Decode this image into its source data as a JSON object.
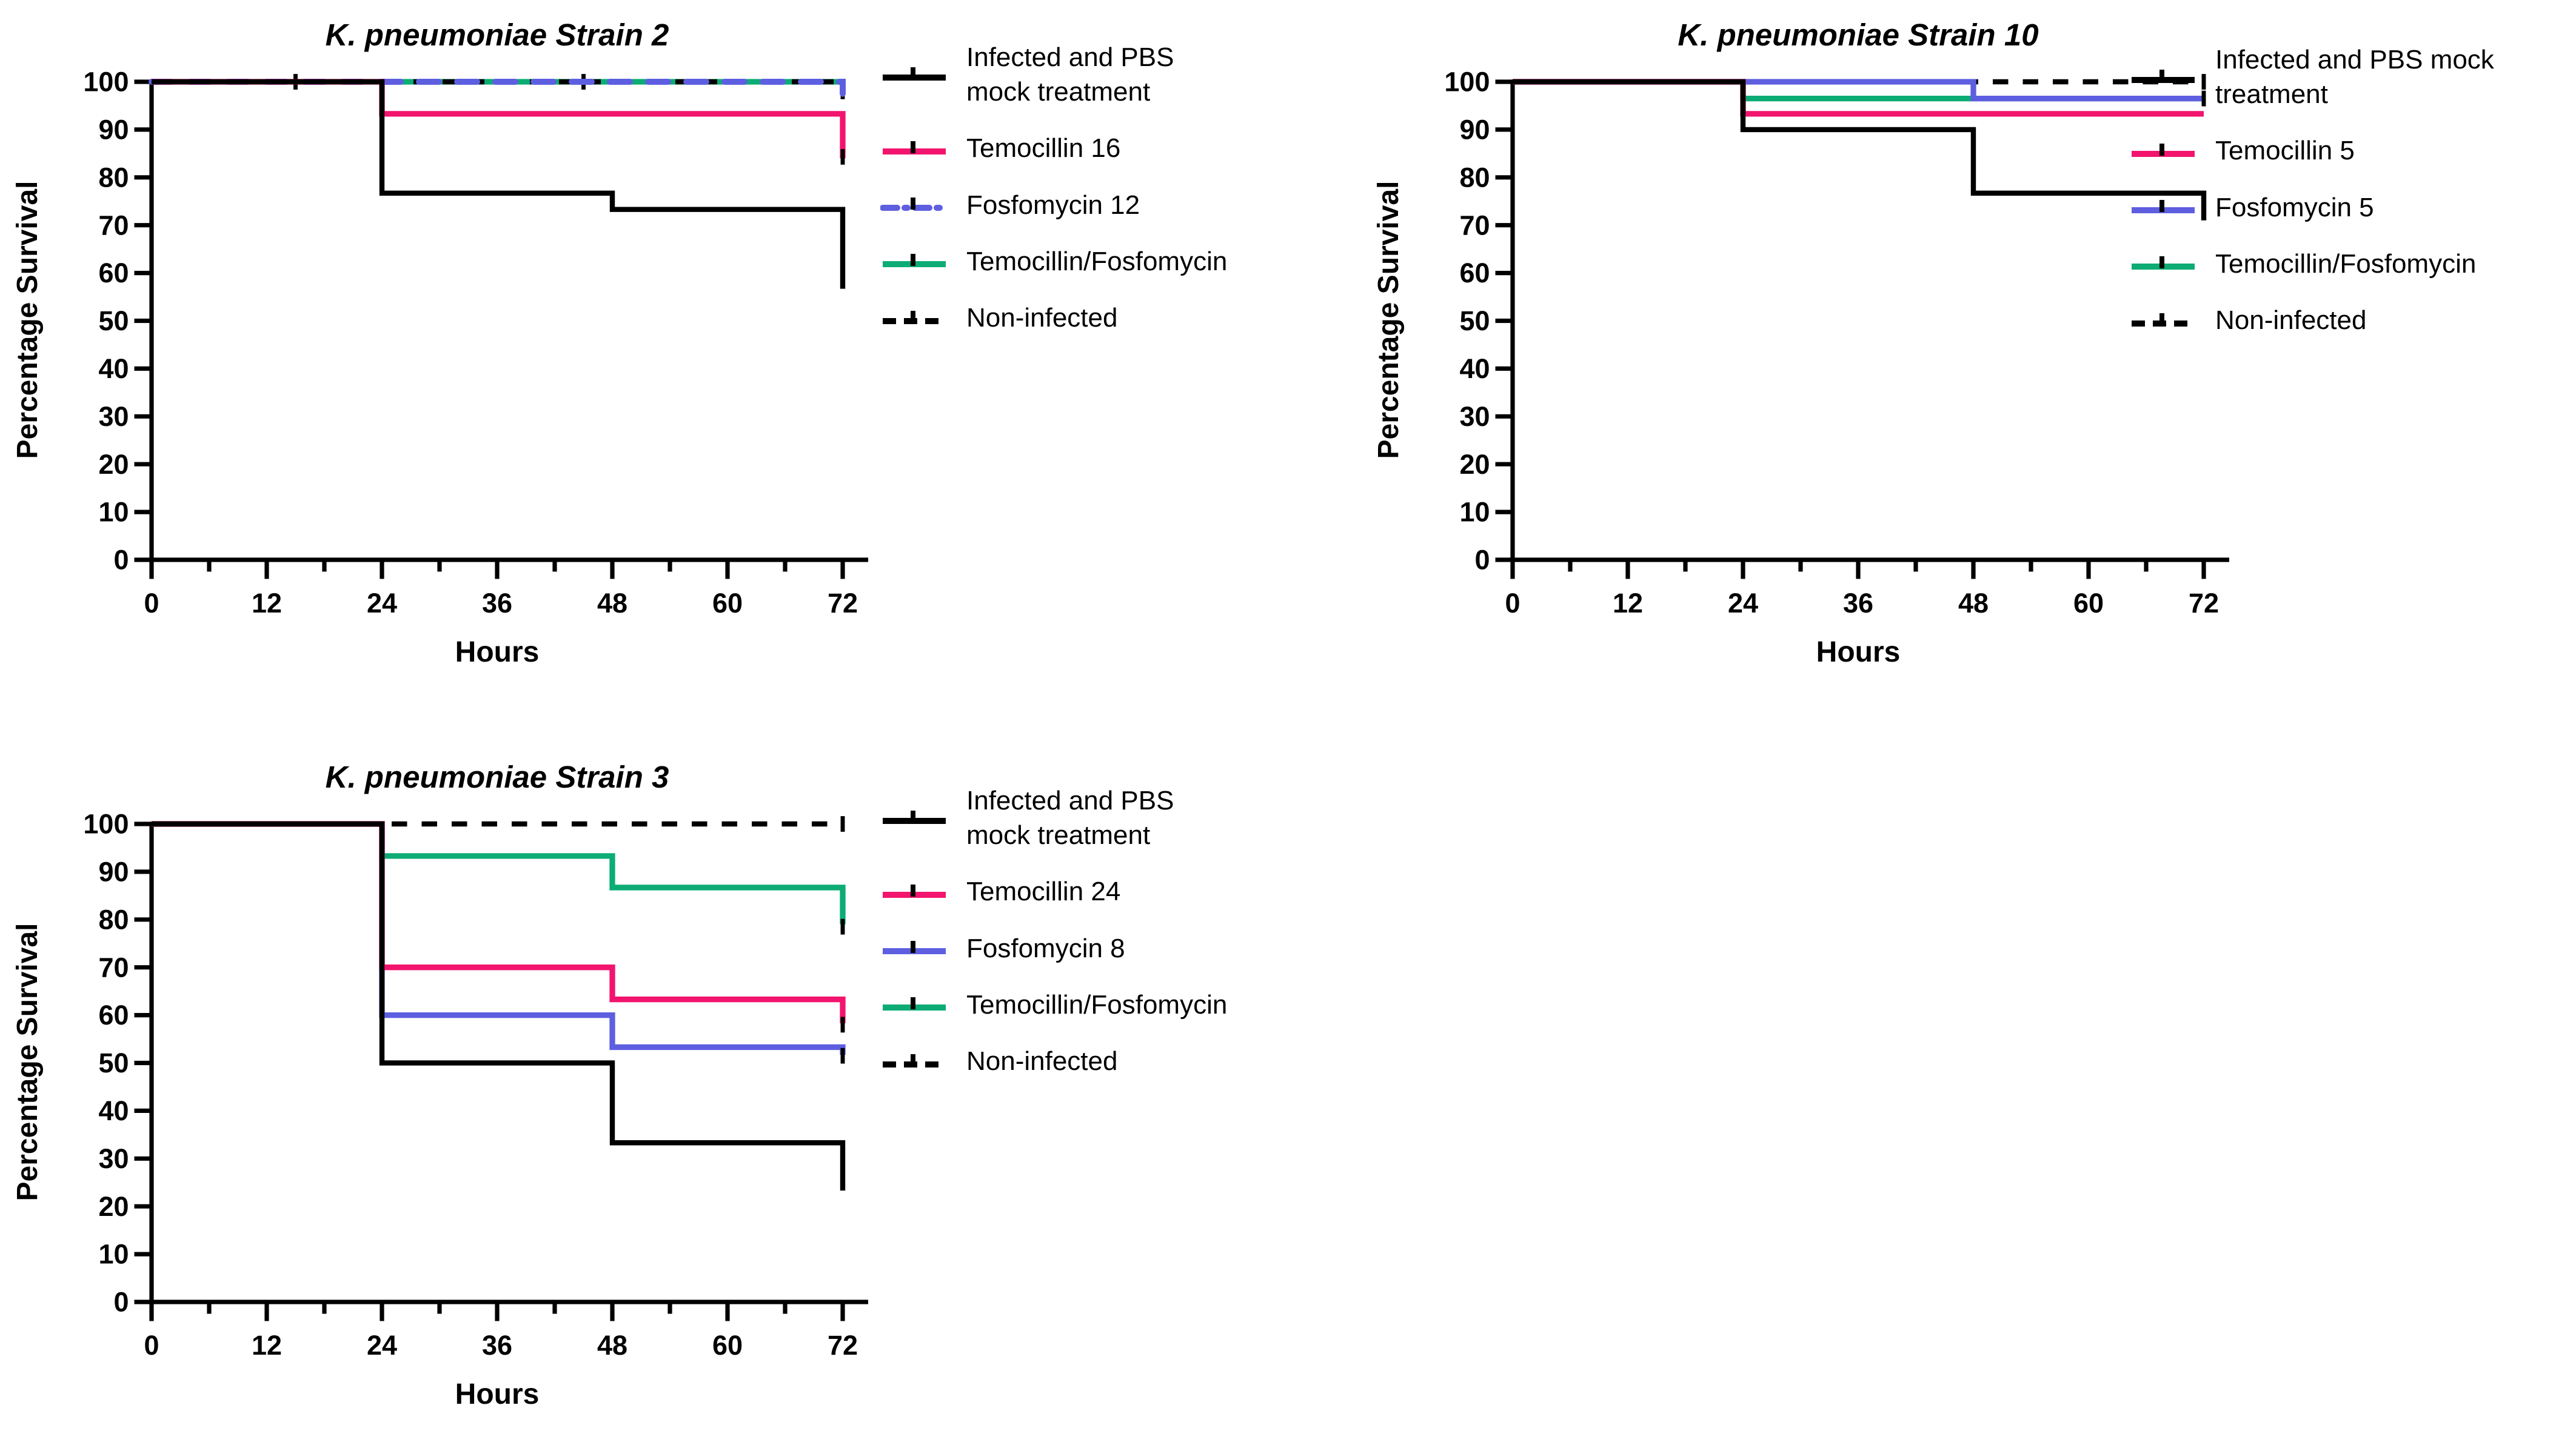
{
  "figure": {
    "background": "#ffffff",
    "description": "Kaplan-Meier survival curves for Galleria infected with three K. pneumoniae strains under different antibiotic treatments"
  },
  "colors": {
    "black": "#000000",
    "pink": "#F2146E",
    "blue": "#5E5FE0",
    "green": "#0CAC74"
  },
  "chart_data": [
    {
      "type": "line",
      "subtype": "kaplan-meier-step",
      "title": "K. pneumoniae Strain 2",
      "xlabel": "Hours",
      "ylabel": "Percentage Survival",
      "xlim": [
        0,
        72
      ],
      "ylim": [
        0,
        100
      ],
      "xticks": [
        0,
        12,
        24,
        36,
        48,
        60,
        72
      ],
      "minor_xtick_step": 6,
      "yticks": [
        0,
        10,
        20,
        30,
        40,
        50,
        60,
        70,
        80,
        90,
        100
      ],
      "grid": false,
      "legend_position": "right",
      "series": [
        {
          "name": "temocillin-fosfomycin",
          "color": "#0CAC74",
          "dash": "",
          "linecap": "butt",
          "width": 3.1,
          "points": [
            [
              0,
              100
            ],
            [
              72,
              100
            ]
          ],
          "censor_ticks": []
        },
        {
          "name": "non-infected",
          "color": "#000000",
          "dash": "7 9",
          "linecap": "butt",
          "width": 2.8,
          "points": [
            [
              0,
              100
            ],
            [
              72,
              100
            ]
          ],
          "censor_ticks": [
            [
              15,
              100
            ],
            [
              45,
              100
            ],
            [
              72,
              98
            ]
          ]
        },
        {
          "name": "fosfomycin-12",
          "color": "#5E5FE0",
          "dash": "11 10",
          "linecap": "round",
          "width": 3.3,
          "points": [
            [
              0,
              100
            ],
            [
              72,
              100
            ],
            [
              72,
              97.5
            ]
          ],
          "censor_ticks": []
        },
        {
          "name": "temocillin-16",
          "color": "#F2146E",
          "dash": "",
          "linecap": "butt",
          "width": 3.1,
          "points": [
            [
              0,
              100
            ],
            [
              24,
              100
            ],
            [
              24,
              93.3
            ],
            [
              72,
              93.3
            ],
            [
              72,
              84
            ]
          ],
          "censor_ticks": [
            [
              72,
              84.3
            ]
          ]
        },
        {
          "name": "infected-pbs",
          "color": "#000000",
          "dash": "",
          "linecap": "butt",
          "width": 2.8,
          "points": [
            [
              0,
              100
            ],
            [
              24,
              100
            ],
            [
              24,
              76.7
            ],
            [
              48,
              76.7
            ],
            [
              48,
              73.3
            ],
            [
              72,
              73.3
            ],
            [
              72,
              56.7
            ]
          ],
          "censor_ticks": []
        }
      ],
      "legend": [
        {
          "series": "infected-pbs",
          "label": "Infected and PBS\nmock treatment"
        },
        {
          "series": "temocillin-16",
          "label": "Temocillin 16"
        },
        {
          "series": "fosfomycin-12",
          "label": "Fosfomycin 12"
        },
        {
          "series": "temocillin-fosfomycin",
          "label": "Temocillin/Fosfomycin"
        },
        {
          "series": "non-infected",
          "label": "Non-infected"
        }
      ]
    },
    {
      "type": "line",
      "subtype": "kaplan-meier-step",
      "title": "K. pneumoniae Strain 10",
      "xlabel": "Hours",
      "ylabel": "Percentage Survival",
      "xlim": [
        0,
        72
      ],
      "ylim": [
        0,
        100
      ],
      "xticks": [
        0,
        12,
        24,
        36,
        48,
        60,
        72
      ],
      "minor_xtick_step": 6,
      "yticks": [
        0,
        10,
        20,
        30,
        40,
        50,
        60,
        70,
        80,
        90,
        100
      ],
      "grid": false,
      "legend_position": "right",
      "series": [
        {
          "name": "non-infected",
          "color": "#000000",
          "dash": "8.5 8",
          "linecap": "butt",
          "width": 2.8,
          "points": [
            [
              0,
              100
            ],
            [
              72,
              100
            ]
          ],
          "censor_ticks": [
            [
              72,
              100
            ]
          ]
        },
        {
          "name": "temocillin-fosfomycin",
          "color": "#0CAC74",
          "dash": "",
          "linecap": "butt",
          "width": 3.1,
          "points": [
            [
              0,
              100
            ],
            [
              24,
              100
            ],
            [
              24,
              96.5
            ],
            [
              72,
              96.5
            ]
          ],
          "censor_ticks": []
        },
        {
          "name": "fosfomycin-5",
          "color": "#5E5FE0",
          "dash": "",
          "linecap": "butt",
          "width": 3.1,
          "points": [
            [
              0,
              100
            ],
            [
              48,
              100
            ],
            [
              48,
              96.5
            ],
            [
              72,
              96.5
            ]
          ],
          "censor_ticks": [
            [
              72,
              96.5
            ]
          ]
        },
        {
          "name": "temocillin-5",
          "color": "#F2146E",
          "dash": "",
          "linecap": "butt",
          "width": 3.1,
          "points": [
            [
              0,
              100
            ],
            [
              24,
              100
            ],
            [
              24,
              93.3
            ],
            [
              72,
              93.3
            ]
          ],
          "censor_ticks": []
        },
        {
          "name": "infected-pbs",
          "color": "#000000",
          "dash": "",
          "linecap": "butt",
          "width": 2.8,
          "points": [
            [
              0,
              100
            ],
            [
              24,
              100
            ],
            [
              24,
              90
            ],
            [
              48,
              90
            ],
            [
              48,
              76.7
            ],
            [
              72,
              76.7
            ],
            [
              72,
              71
            ]
          ],
          "censor_ticks": []
        }
      ],
      "legend": [
        {
          "series": "infected-pbs",
          "label": "Infected and PBS mock\ntreatment"
        },
        {
          "series": "temocillin-5",
          "label": "Temocillin 5"
        },
        {
          "series": "fosfomycin-5",
          "label": "Fosfomycin 5"
        },
        {
          "series": "temocillin-fosfomycin",
          "label": "Temocillin/Fosfomycin"
        },
        {
          "series": "non-infected",
          "label": "Non-infected"
        }
      ]
    },
    {
      "type": "line",
      "subtype": "kaplan-meier-step",
      "title": "K. pneumoniae Strain 3",
      "xlabel": "Hours",
      "ylabel": "Percentage Survival",
      "xlim": [
        0,
        72
      ],
      "ylim": [
        0,
        100
      ],
      "xticks": [
        0,
        12,
        24,
        36,
        48,
        60,
        72
      ],
      "minor_xtick_step": 6,
      "yticks": [
        0,
        10,
        20,
        30,
        40,
        50,
        60,
        70,
        80,
        90,
        100
      ],
      "grid": false,
      "legend_position": "right",
      "series": [
        {
          "name": "non-infected",
          "color": "#000000",
          "dash": "8.5 8",
          "linecap": "butt",
          "width": 2.8,
          "points": [
            [
              0,
              100
            ],
            [
              72,
              100
            ]
          ],
          "censor_ticks": [
            [
              72,
              100
            ]
          ]
        },
        {
          "name": "temocillin-fosfomycin",
          "color": "#0CAC74",
          "dash": "",
          "linecap": "butt",
          "width": 3.1,
          "points": [
            [
              0,
              100
            ],
            [
              24,
              100
            ],
            [
              24,
              93.3
            ],
            [
              48,
              93.3
            ],
            [
              48,
              86.7
            ],
            [
              72,
              86.7
            ],
            [
              72,
              79
            ]
          ],
          "censor_ticks": [
            [
              72,
              78.5
            ]
          ]
        },
        {
          "name": "fosfomycin-8",
          "color": "#5E5FE0",
          "dash": "",
          "linecap": "butt",
          "width": 3.1,
          "points": [
            [
              0,
              100
            ],
            [
              24,
              100
            ],
            [
              24,
              60
            ],
            [
              48,
              60
            ],
            [
              48,
              53.3
            ],
            [
              72,
              53.3
            ],
            [
              72,
              51.7
            ]
          ],
          "censor_ticks": [
            [
              72,
              51.5
            ]
          ]
        },
        {
          "name": "temocillin-24",
          "color": "#F2146E",
          "dash": "",
          "linecap": "butt",
          "width": 3.1,
          "points": [
            [
              0,
              100
            ],
            [
              24,
              100
            ],
            [
              24,
              70
            ],
            [
              48,
              70
            ],
            [
              48,
              63.3
            ],
            [
              72,
              63.3
            ],
            [
              72,
              58.3
            ]
          ],
          "censor_ticks": [
            [
              72,
              58
            ]
          ]
        },
        {
          "name": "infected-pbs",
          "color": "#000000",
          "dash": "",
          "linecap": "butt",
          "width": 2.8,
          "points": [
            [
              0,
              100
            ],
            [
              24,
              100
            ],
            [
              24,
              50
            ],
            [
              48,
              50
            ],
            [
              48,
              33.3
            ],
            [
              72,
              33.3
            ],
            [
              72,
              23.3
            ]
          ],
          "censor_ticks": []
        }
      ],
      "legend": [
        {
          "series": "infected-pbs",
          "label": "Infected and PBS\nmock treatment"
        },
        {
          "series": "temocillin-24",
          "label": "Temocillin 24"
        },
        {
          "series": "fosfomycin-8",
          "label": "Fosfomycin 8"
        },
        {
          "series": "temocillin-fosfomycin",
          "label": "Temocillin/Fosfomycin"
        },
        {
          "series": "non-infected",
          "label": "Non-infected"
        }
      ]
    }
  ]
}
